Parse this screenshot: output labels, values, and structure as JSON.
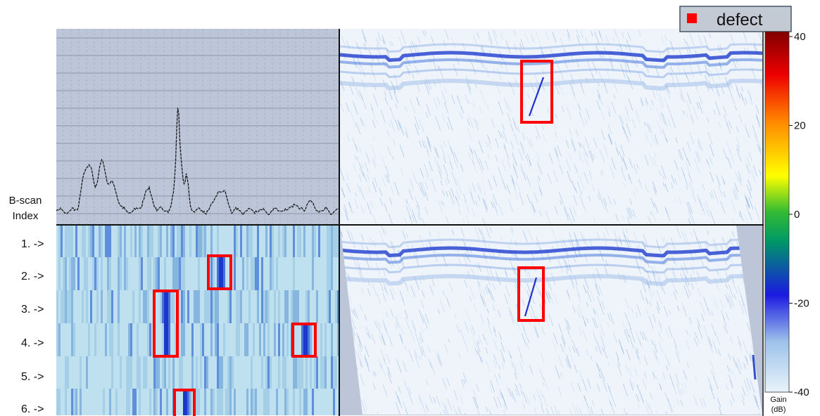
{
  "legend": {
    "label": "defect",
    "swatch_color": "#ff0000"
  },
  "ylabel": {
    "line1": "B-scan",
    "line2": "Index"
  },
  "bscan_rows": [
    "1. ->",
    "2. ->",
    "3. ->",
    "4. ->",
    "5. ->",
    "6. ->"
  ],
  "colorbar": {
    "ticks": [
      "40",
      "20",
      "0",
      "-20",
      "-40"
    ],
    "tick_values": [
      40,
      20,
      0,
      -20,
      -40
    ],
    "range": [
      -40,
      40
    ],
    "unit_line1": "Gain",
    "unit_line2": "(dB)",
    "stops": [
      "#e0f2f8",
      "#9ec2ea",
      "#1a1ae0",
      "#008800",
      "#ffff00",
      "#ff8800",
      "#ff0000",
      "#800000"
    ]
  },
  "colors": {
    "defect_box": "#ff0000",
    "chart_bg": "#bcc6d8",
    "scan_bg": "#eef4fa",
    "scan_stripe": "#3a5ad8"
  }
}
